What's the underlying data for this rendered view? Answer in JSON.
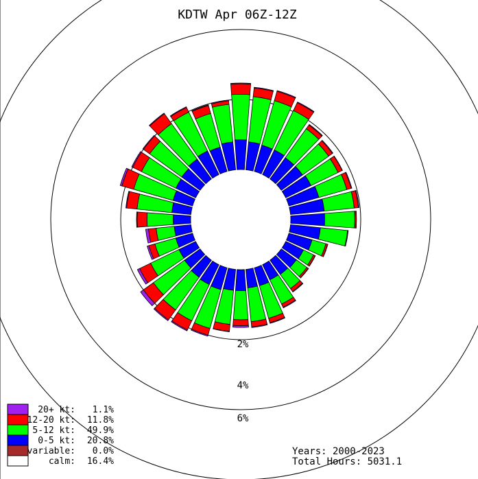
{
  "chart_data": {
    "type": "windrose",
    "title": "KDTW Apr 06Z-12Z",
    "rings": [
      {
        "value": 2,
        "label": "2%"
      },
      {
        "value": 4,
        "label": "4%"
      },
      {
        "value": 6,
        "label": "6%"
      }
    ],
    "calm_percent": 16.4,
    "colors": {
      "gt20": "#a020f0",
      "k12_20": "#ff0000",
      "k5_12": "#00ff00",
      "k0_5": "#0000ff",
      "variable": "#a52a2a",
      "calm": "#ffffff"
    },
    "legend": [
      {
        "key": "gt20",
        "label": "20+ kt:",
        "pct": "1.1%"
      },
      {
        "key": "k12_20",
        "label": "12-20 kt:",
        "pct": "11.8%"
      },
      {
        "key": "k5_12",
        "label": "5-12 kt:",
        "pct": "49.9%"
      },
      {
        "key": "k0_5",
        "label": "0-5 kt:",
        "pct": "20.8%"
      },
      {
        "key": "variable",
        "label": "variable:",
        "pct": "0.0%"
      },
      {
        "key": "calm",
        "label": "calm:",
        "pct": "16.4%"
      }
    ],
    "footer": {
      "years": "Years: 2000-2023",
      "hours": "Total Hours: 5031.1"
    },
    "directions": [
      0,
      10,
      20,
      30,
      40,
      50,
      60,
      70,
      80,
      90,
      100,
      110,
      120,
      130,
      140,
      150,
      160,
      170,
      180,
      190,
      200,
      210,
      220,
      230,
      240,
      250,
      260,
      270,
      280,
      290,
      300,
      310,
      320,
      330,
      340,
      350
    ],
    "cumulative_percent": [
      {
        "k0_5": 0.85,
        "k5_12": 2.15,
        "k12_20": 2.45,
        "gt20": 2.47
      },
      {
        "k0_5": 0.8,
        "k5_12": 2.1,
        "k12_20": 2.35,
        "gt20": 2.37
      },
      {
        "k0_5": 0.78,
        "k5_12": 2.1,
        "k12_20": 2.38,
        "gt20": 2.4
      },
      {
        "k0_5": 0.78,
        "k5_12": 2.03,
        "k12_20": 2.28,
        "gt20": 2.3
      },
      {
        "k0_5": 0.75,
        "k5_12": 1.77,
        "k12_20": 1.9,
        "gt20": 1.92
      },
      {
        "k0_5": 0.75,
        "k5_12": 1.67,
        "k12_20": 1.8,
        "gt20": 1.82
      },
      {
        "k0_5": 0.8,
        "k5_12": 1.66,
        "k12_20": 1.79,
        "gt20": 1.8
      },
      {
        "k0_5": 0.89,
        "k5_12": 1.72,
        "k12_20": 1.85,
        "gt20": 1.87
      },
      {
        "k0_5": 0.97,
        "k5_12": 1.83,
        "k12_20": 1.95,
        "gt20": 1.97
      },
      {
        "k0_5": 0.97,
        "k5_12": 1.83,
        "k12_20": 1.87,
        "gt20": 1.88
      },
      {
        "k0_5": 0.86,
        "k5_12": 1.64,
        "k12_20": 1.65,
        "gt20": 1.66
      },
      {
        "k0_5": 0.69,
        "k5_12": 1.1,
        "k12_20": 1.15,
        "gt20": 1.16
      },
      {
        "k0_5": 0.56,
        "k5_12": 0.88,
        "k12_20": 0.93,
        "gt20": 0.94
      },
      {
        "k0_5": 0.53,
        "k5_12": 0.9,
        "k12_20": 0.95,
        "gt20": 0.96
      },
      {
        "k0_5": 0.5,
        "k5_12": 1.0,
        "k12_20": 1.1,
        "gt20": 1.12
      },
      {
        "k0_5": 0.48,
        "k5_12": 1.25,
        "k12_20": 1.35,
        "gt20": 1.37
      },
      {
        "k0_5": 0.53,
        "k5_12": 1.5,
        "k12_20": 1.63,
        "gt20": 1.65
      },
      {
        "k0_5": 0.53,
        "k5_12": 1.5,
        "k12_20": 1.65,
        "gt20": 1.67
      },
      {
        "k0_5": 0.6,
        "k5_12": 1.43,
        "k12_20": 1.6,
        "gt20": 1.65
      },
      {
        "k0_5": 0.6,
        "k5_12": 1.58,
        "k12_20": 1.78,
        "gt20": 1.79
      },
      {
        "k0_5": 0.65,
        "k5_12": 1.8,
        "k12_20": 2.0,
        "gt20": 2.03
      },
      {
        "k0_5": 0.63,
        "k5_12": 1.78,
        "k12_20": 2.07,
        "gt20": 2.1
      },
      {
        "k0_5": 0.6,
        "k5_12": 1.75,
        "k12_20": 2.1,
        "gt20": 2.13
      },
      {
        "k0_5": 0.55,
        "k5_12": 1.65,
        "k12_20": 2.0,
        "gt20": 2.1
      },
      {
        "k0_5": 0.53,
        "k5_12": 1.43,
        "k12_20": 1.78,
        "gt20": 1.85
      },
      {
        "k0_5": 0.5,
        "k5_12": 1.12,
        "k12_20": 1.3,
        "gt20": 1.35
      },
      {
        "k0_5": 0.48,
        "k5_12": 1.0,
        "k12_20": 1.22,
        "gt20": 1.3
      },
      {
        "k0_5": 0.5,
        "k5_12": 1.25,
        "k12_20": 1.53,
        "gt20": 1.55
      },
      {
        "k0_5": 0.55,
        "k5_12": 1.55,
        "k12_20": 1.85,
        "gt20": 1.87
      },
      {
        "k0_5": 0.58,
        "k5_12": 1.75,
        "k12_20": 2.1,
        "gt20": 2.15
      },
      {
        "k0_5": 0.63,
        "k5_12": 1.72,
        "k12_20": 2.0,
        "gt20": 2.03
      },
      {
        "k0_5": 0.65,
        "k5_12": 1.78,
        "k12_20": 2.0,
        "gt20": 2.02
      },
      {
        "k0_5": 0.7,
        "k5_12": 1.95,
        "k12_20": 2.3,
        "gt20": 2.32
      },
      {
        "k0_5": 0.75,
        "k5_12": 1.98,
        "k12_20": 2.13,
        "gt20": 2.15
      },
      {
        "k0_5": 0.72,
        "k5_12": 1.72,
        "k12_20": 1.96,
        "gt20": 1.98
      },
      {
        "k0_5": 0.8,
        "k5_12": 1.88,
        "k12_20": 1.98,
        "gt20": 2.0
      }
    ]
  }
}
